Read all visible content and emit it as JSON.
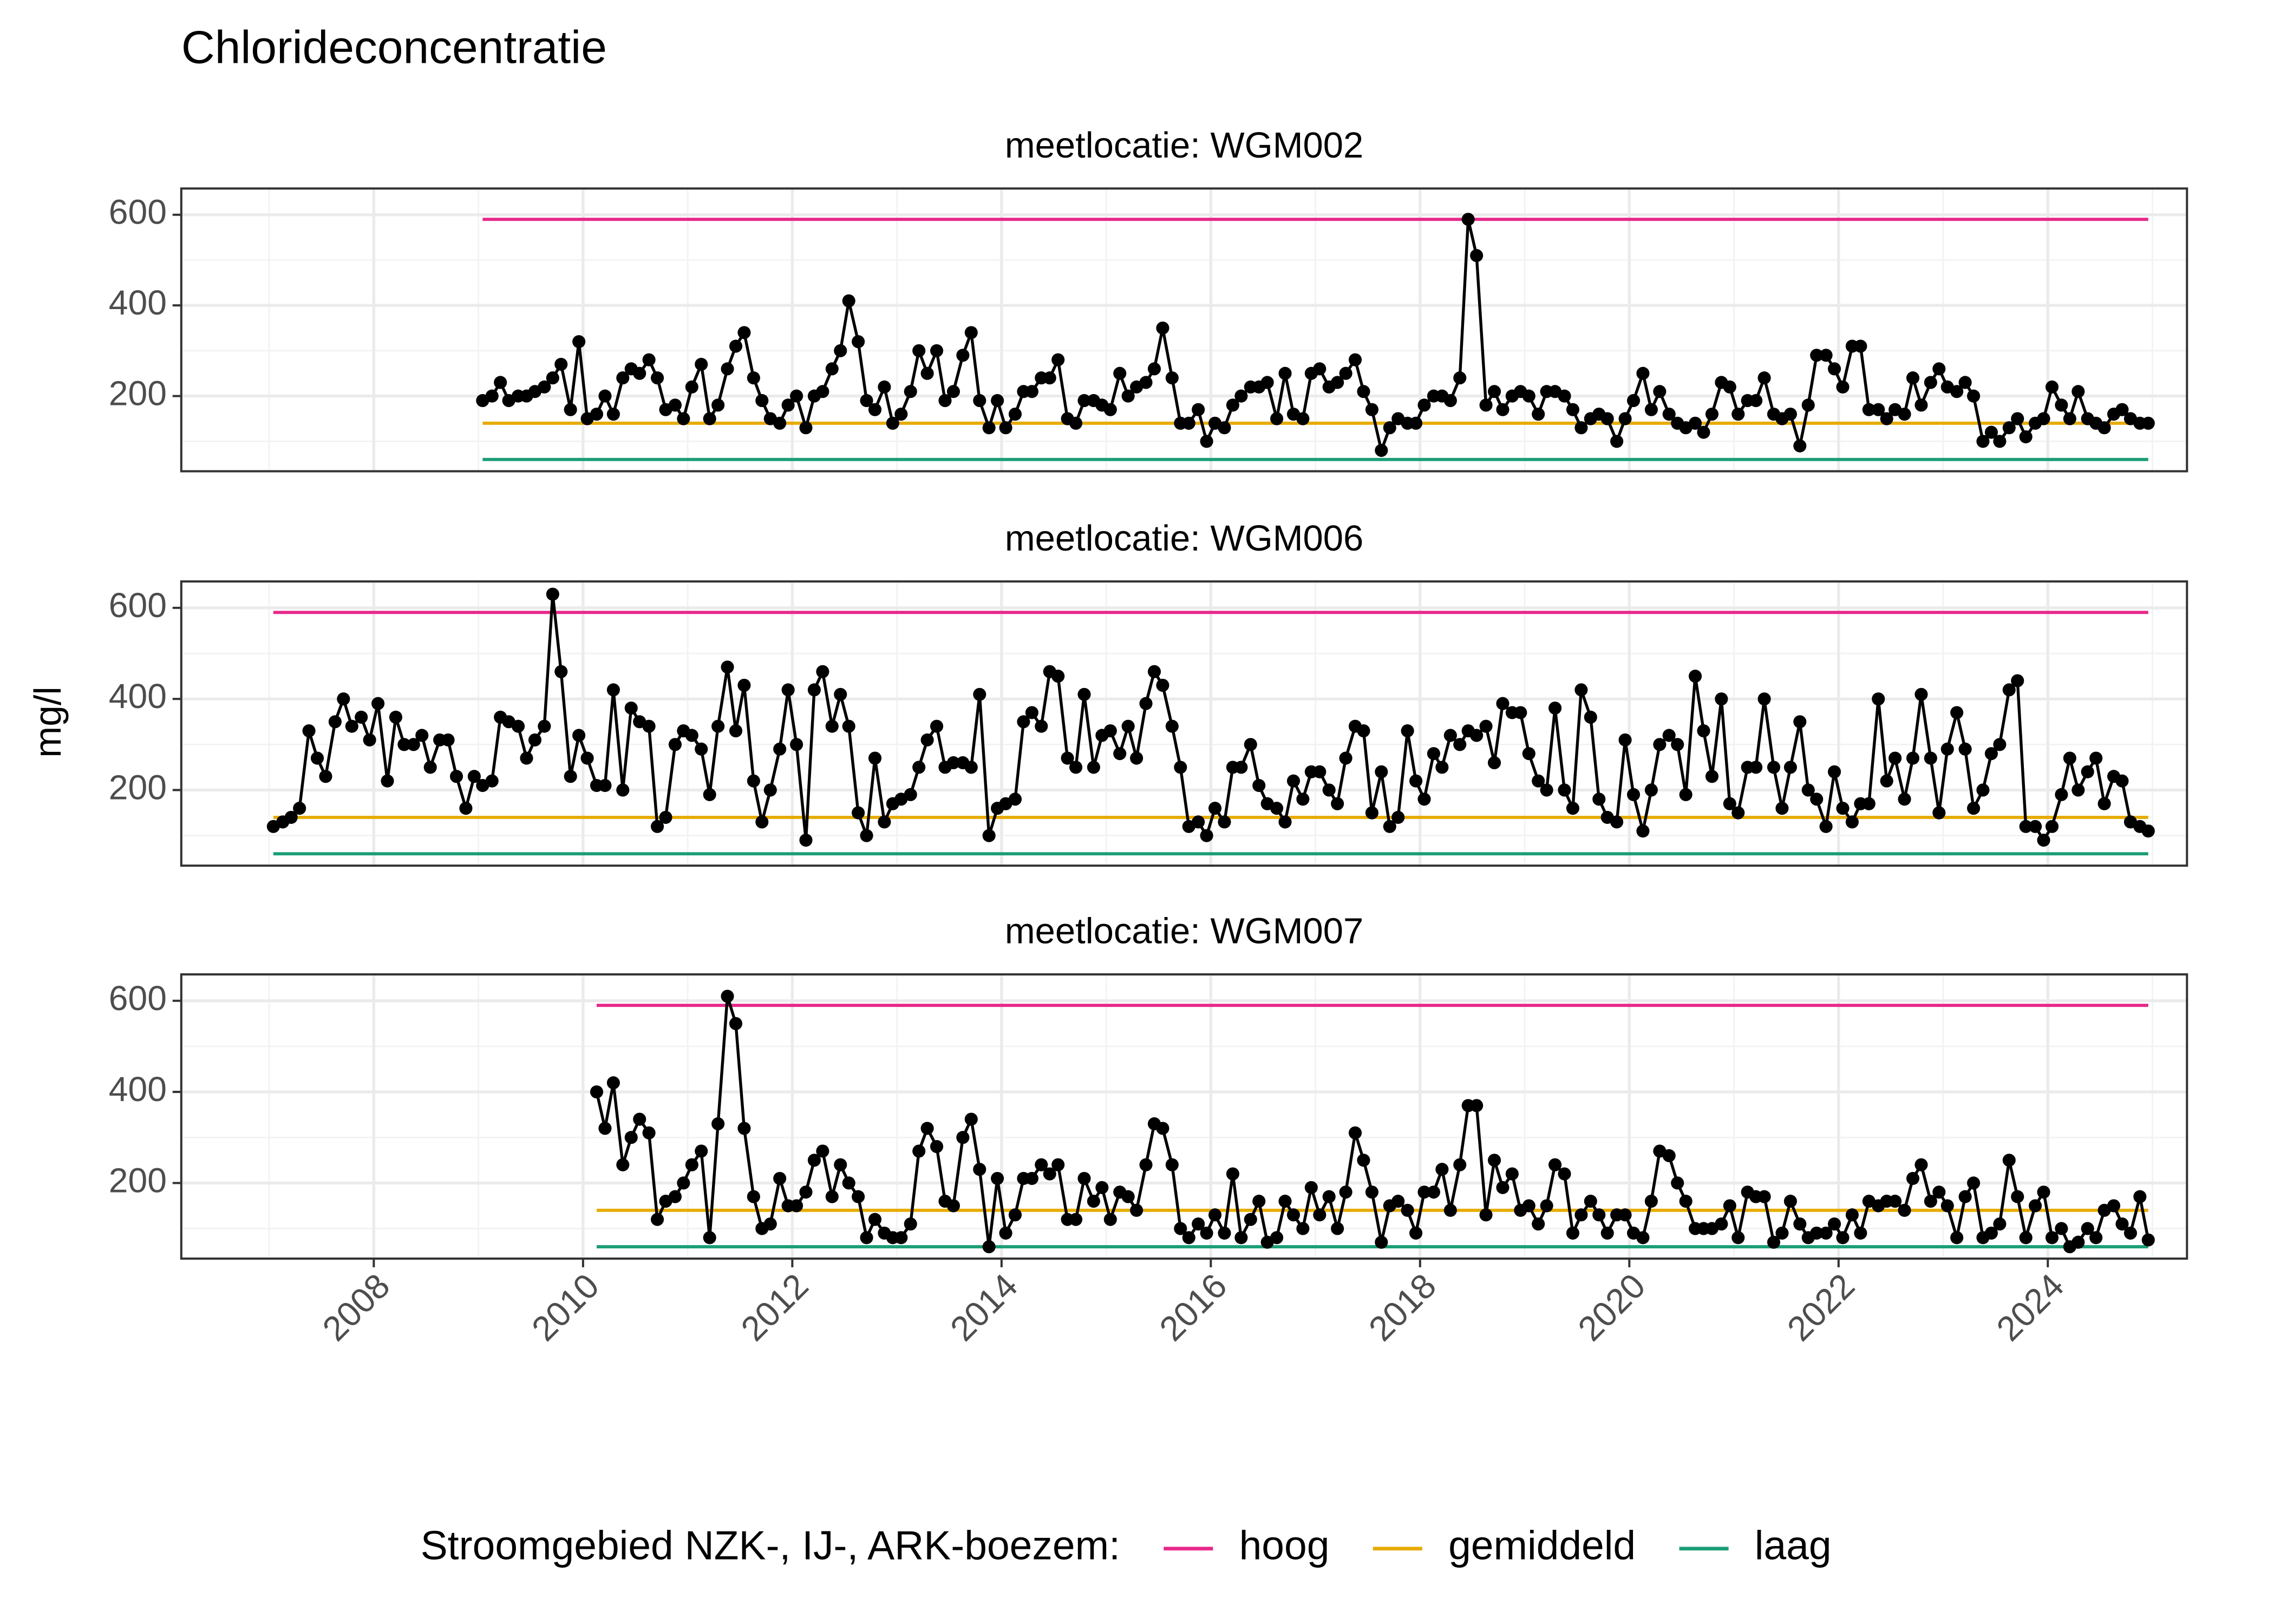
{
  "chart_data": {
    "type": "line",
    "title": "Chlorideconcentratie",
    "ylabel": "mg/l",
    "legend_title": "Stroomgebied NZK-, IJ-, ARK-boezem:",
    "thresholds": [
      {
        "name": "hoog",
        "color": "#e7298a",
        "value": 590
      },
      {
        "name": "gemiddeld",
        "color": "#e6ab02",
        "value": 140
      },
      {
        "name": "laag",
        "color": "#1b9e77",
        "value": 60
      }
    ],
    "xlim": [
      2006.16,
      2025.33
    ],
    "ylim": [
      34,
      658
    ],
    "xticks": [
      2008,
      2010,
      2012,
      2014,
      2016,
      2018,
      2020,
      2022,
      2024
    ],
    "yticks": [
      200,
      400,
      600
    ],
    "grid": true,
    "point_color": "#000000",
    "x": [
      2007.04,
      2007.13,
      2007.21,
      2007.29,
      2007.38,
      2007.46,
      2007.54,
      2007.63,
      2007.71,
      2007.79,
      2007.88,
      2007.96,
      2008.04,
      2008.13,
      2008.21,
      2008.29,
      2008.38,
      2008.46,
      2008.54,
      2008.63,
      2008.71,
      2008.79,
      2008.88,
      2008.96,
      2009.04,
      2009.13,
      2009.21,
      2009.29,
      2009.38,
      2009.46,
      2009.54,
      2009.63,
      2009.71,
      2009.79,
      2009.88,
      2009.96,
      2010.04,
      2010.13,
      2010.21,
      2010.29,
      2010.38,
      2010.46,
      2010.54,
      2010.63,
      2010.71,
      2010.79,
      2010.88,
      2010.96,
      2011.04,
      2011.13,
      2011.21,
      2011.29,
      2011.38,
      2011.46,
      2011.54,
      2011.63,
      2011.71,
      2011.79,
      2011.88,
      2011.96,
      2012.04,
      2012.13,
      2012.21,
      2012.29,
      2012.38,
      2012.46,
      2012.54,
      2012.63,
      2012.71,
      2012.79,
      2012.88,
      2012.96,
      2013.04,
      2013.13,
      2013.21,
      2013.29,
      2013.38,
      2013.46,
      2013.54,
      2013.63,
      2013.71,
      2013.79,
      2013.88,
      2013.96,
      2014.04,
      2014.13,
      2014.21,
      2014.29,
      2014.38,
      2014.46,
      2014.54,
      2014.63,
      2014.71,
      2014.79,
      2014.88,
      2014.96,
      2015.04,
      2015.13,
      2015.21,
      2015.29,
      2015.38,
      2015.46,
      2015.54,
      2015.63,
      2015.71,
      2015.79,
      2015.88,
      2015.96,
      2016.04,
      2016.13,
      2016.21,
      2016.29,
      2016.38,
      2016.46,
      2016.54,
      2016.63,
      2016.71,
      2016.79,
      2016.88,
      2016.96,
      2017.04,
      2017.13,
      2017.21,
      2017.29,
      2017.38,
      2017.46,
      2017.54,
      2017.63,
      2017.71,
      2017.79,
      2017.88,
      2017.96,
      2018.04,
      2018.13,
      2018.21,
      2018.29,
      2018.38,
      2018.46,
      2018.54,
      2018.63,
      2018.71,
      2018.79,
      2018.88,
      2018.96,
      2019.04,
      2019.13,
      2019.21,
      2019.29,
      2019.38,
      2019.46,
      2019.54,
      2019.63,
      2019.71,
      2019.79,
      2019.88,
      2019.96,
      2020.04,
      2020.13,
      2020.21,
      2020.29,
      2020.38,
      2020.46,
      2020.54,
      2020.63,
      2020.71,
      2020.79,
      2020.88,
      2020.96,
      2021.04,
      2021.13,
      2021.21,
      2021.29,
      2021.38,
      2021.46,
      2021.54,
      2021.63,
      2021.71,
      2021.79,
      2021.88,
      2021.96,
      2022.04,
      2022.13,
      2022.21,
      2022.29,
      2022.38,
      2022.46,
      2022.54,
      2022.63,
      2022.71,
      2022.79,
      2022.88,
      2022.96,
      2023.04,
      2023.13,
      2023.21,
      2023.29,
      2023.38,
      2023.46,
      2023.54,
      2023.63,
      2023.71,
      2023.79,
      2023.88,
      2023.96,
      2024.04,
      2024.13,
      2024.21,
      2024.29,
      2024.38,
      2024.46,
      2024.54,
      2024.63,
      2024.71,
      2024.79,
      2024.88,
      2024.96
    ],
    "facets": [
      {
        "title": "meetlocatie: WGM002",
        "values": [
          null,
          null,
          null,
          null,
          null,
          null,
          null,
          null,
          null,
          null,
          null,
          null,
          null,
          null,
          null,
          null,
          null,
          null,
          null,
          null,
          null,
          null,
          null,
          null,
          190,
          200,
          230,
          190,
          200,
          200,
          210,
          220,
          240,
          270,
          170,
          320,
          150,
          160,
          200,
          160,
          240,
          260,
          250,
          280,
          240,
          170,
          180,
          150,
          220,
          270,
          150,
          180,
          260,
          310,
          340,
          240,
          190,
          150,
          140,
          180,
          200,
          130,
          200,
          210,
          260,
          300,
          410,
          320,
          190,
          170,
          220,
          140,
          160,
          210,
          300,
          250,
          300,
          190,
          210,
          290,
          340,
          190,
          130,
          190,
          130,
          160,
          210,
          210,
          240,
          240,
          280,
          150,
          140,
          190,
          190,
          180,
          170,
          250,
          200,
          220,
          230,
          260,
          350,
          240,
          140,
          140,
          170,
          100,
          140,
          130,
          180,
          200,
          220,
          220,
          230,
          150,
          250,
          160,
          150,
          250,
          260,
          220,
          230,
          250,
          280,
          210,
          170,
          80,
          130,
          150,
          140,
          140,
          180,
          200,
          200,
          190,
          240,
          590,
          510,
          180,
          210,
          170,
          200,
          210,
          200,
          160,
          210,
          210,
          200,
          170,
          130,
          150,
          160,
          150,
          100,
          150,
          190,
          250,
          170,
          210,
          160,
          140,
          130,
          140,
          120,
          160,
          230,
          220,
          160,
          190,
          190,
          240,
          160,
          150,
          160,
          90,
          180,
          290,
          290,
          260,
          220,
          310,
          310,
          170,
          170,
          150,
          170,
          160,
          240,
          180,
          230,
          260,
          220,
          210,
          230,
          200,
          100,
          120,
          100,
          130,
          150,
          110,
          140,
          150,
          220,
          180,
          150,
          210,
          150,
          140,
          130,
          160,
          170,
          150,
          140,
          140
        ]
      },
      {
        "title": "meetlocatie: WGM006",
        "values": [
          120,
          130,
          140,
          160,
          330,
          270,
          230,
          350,
          400,
          340,
          360,
          310,
          390,
          220,
          360,
          300,
          300,
          320,
          250,
          310,
          310,
          230,
          160,
          230,
          210,
          220,
          360,
          350,
          340,
          270,
          310,
          340,
          630,
          460,
          230,
          320,
          270,
          210,
          210,
          420,
          200,
          380,
          350,
          340,
          120,
          140,
          300,
          330,
          320,
          290,
          190,
          340,
          470,
          330,
          430,
          220,
          130,
          200,
          290,
          420,
          300,
          90,
          420,
          460,
          340,
          410,
          340,
          150,
          100,
          270,
          130,
          170,
          180,
          190,
          250,
          310,
          340,
          250,
          260,
          260,
          250,
          410,
          100,
          160,
          170,
          180,
          350,
          370,
          340,
          460,
          450,
          270,
          250,
          410,
          250,
          320,
          330,
          280,
          340,
          270,
          390,
          460,
          430,
          340,
          250,
          120,
          130,
          100,
          160,
          130,
          250,
          250,
          300,
          210,
          170,
          160,
          130,
          220,
          180,
          240,
          240,
          200,
          170,
          270,
          340,
          330,
          150,
          240,
          120,
          140,
          330,
          220,
          180,
          280,
          250,
          320,
          300,
          330,
          320,
          340,
          260,
          390,
          370,
          370,
          280,
          220,
          200,
          380,
          200,
          160,
          420,
          360,
          180,
          140,
          130,
          310,
          190,
          110,
          200,
          300,
          320,
          300,
          190,
          450,
          330,
          230,
          400,
          170,
          150,
          250,
          250,
          400,
          250,
          160,
          250,
          350,
          200,
          180,
          120,
          240,
          160,
          130,
          170,
          170,
          400,
          220,
          270,
          180,
          270,
          410,
          270,
          150,
          290,
          370,
          290,
          160,
          200,
          280,
          300,
          420,
          440,
          120,
          120,
          90,
          120,
          190,
          270,
          200,
          240,
          270,
          170,
          230,
          220,
          130,
          120,
          110
        ]
      },
      {
        "title": "meetlocatie: WGM007",
        "values": [
          null,
          null,
          null,
          null,
          null,
          null,
          null,
          null,
          null,
          null,
          null,
          null,
          null,
          null,
          null,
          null,
          null,
          null,
          null,
          null,
          null,
          null,
          null,
          null,
          null,
          null,
          null,
          null,
          null,
          null,
          null,
          null,
          null,
          null,
          null,
          null,
          null,
          400,
          320,
          420,
          240,
          300,
          340,
          310,
          120,
          160,
          170,
          200,
          240,
          270,
          80,
          330,
          610,
          550,
          320,
          170,
          100,
          110,
          210,
          150,
          150,
          180,
          250,
          270,
          170,
          240,
          200,
          170,
          80,
          120,
          90,
          80,
          80,
          110,
          270,
          320,
          280,
          160,
          150,
          300,
          340,
          230,
          60,
          210,
          90,
          130,
          210,
          210,
          240,
          220,
          240,
          120,
          120,
          210,
          160,
          190,
          120,
          180,
          170,
          140,
          240,
          330,
          320,
          240,
          100,
          80,
          110,
          90,
          130,
          90,
          220,
          80,
          120,
          160,
          70,
          80,
          160,
          130,
          100,
          190,
          130,
          170,
          100,
          180,
          310,
          250,
          180,
          70,
          150,
          160,
          140,
          90,
          180,
          180,
          230,
          140,
          240,
          370,
          370,
          130,
          250,
          190,
          220,
          140,
          150,
          110,
          150,
          240,
          220,
          90,
          130,
          160,
          130,
          90,
          130,
          130,
          90,
          80,
          160,
          270,
          260,
          200,
          160,
          100,
          100,
          100,
          110,
          150,
          80,
          180,
          170,
          170,
          70,
          90,
          160,
          110,
          80,
          90,
          90,
          110,
          80,
          130,
          90,
          160,
          150,
          160,
          160,
          140,
          210,
          240,
          160,
          180,
          150,
          80,
          170,
          200,
          80,
          90,
          110,
          250,
          170,
          80,
          150,
          180,
          80,
          100,
          60,
          70,
          100,
          80,
          140,
          150,
          110,
          90,
          170,
          75
        ]
      }
    ]
  }
}
